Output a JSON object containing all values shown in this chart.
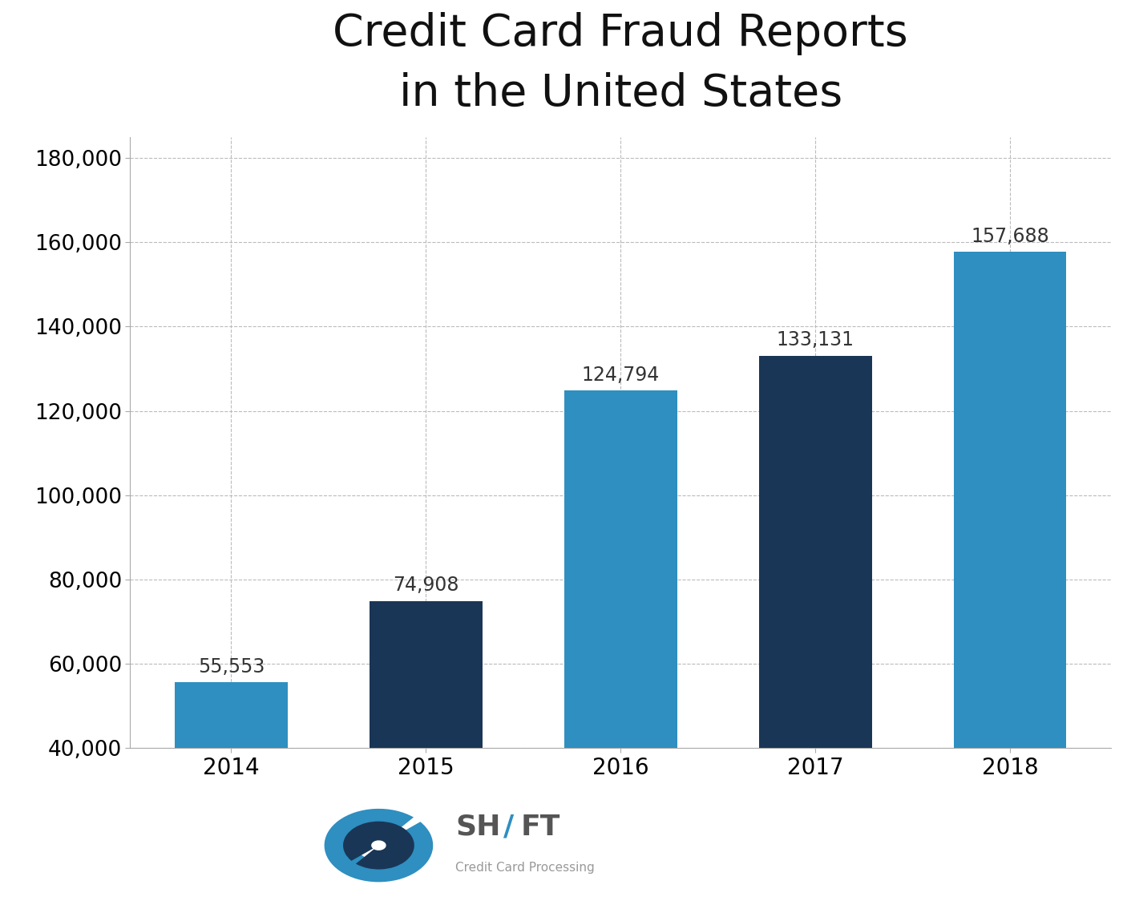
{
  "categories": [
    "2014",
    "2015",
    "2016",
    "2017",
    "2018"
  ],
  "values": [
    55553,
    74908,
    124794,
    133131,
    157688
  ],
  "bar_colors": [
    "#2e8fc0",
    "#1a3656",
    "#2e8fc0",
    "#1a3656",
    "#2e8fc0"
  ],
  "title_line1": "Credit Card Fraud Reports",
  "title_line2": "in the United States",
  "title_fontsize": 40,
  "tick_fontsize": 19,
  "value_label_fontsize": 17,
  "ylim_min": 40000,
  "ylim_max": 185000,
  "yticks": [
    40000,
    60000,
    80000,
    100000,
    120000,
    140000,
    160000,
    180000
  ],
  "background_color": "#ffffff",
  "grid_color": "#bbbbbb",
  "bar_width": 0.58,
  "icon_light_blue": "#2e8fc0",
  "icon_dark_blue": "#1a3656",
  "shift_text_color": "#888888",
  "subtitle_color": "#aaaaaa"
}
